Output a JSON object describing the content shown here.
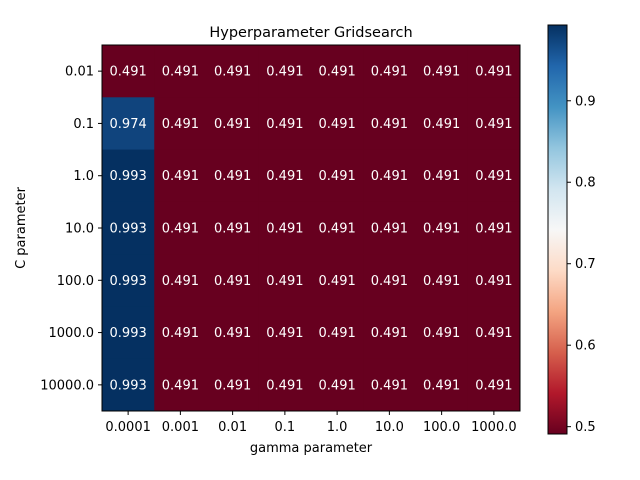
{
  "chart_data": {
    "type": "heatmap",
    "title": "Hyperparameter Gridsearch",
    "xlabel": "gamma parameter",
    "ylabel": "C parameter",
    "x_categories": [
      "0.0001",
      "0.001",
      "0.01",
      "0.1",
      "1.0",
      "10.0",
      "100.0",
      "1000.0"
    ],
    "y_categories": [
      "0.01",
      "0.1",
      "1.0",
      "10.0",
      "100.0",
      "1000.0",
      "10000.0"
    ],
    "values": [
      [
        0.491,
        0.491,
        0.491,
        0.491,
        0.491,
        0.491,
        0.491,
        0.491
      ],
      [
        0.974,
        0.491,
        0.491,
        0.491,
        0.491,
        0.491,
        0.491,
        0.491
      ],
      [
        0.993,
        0.491,
        0.491,
        0.491,
        0.491,
        0.491,
        0.491,
        0.491
      ],
      [
        0.993,
        0.491,
        0.491,
        0.491,
        0.491,
        0.491,
        0.491,
        0.491
      ],
      [
        0.993,
        0.491,
        0.491,
        0.491,
        0.491,
        0.491,
        0.491,
        0.491
      ],
      [
        0.993,
        0.491,
        0.491,
        0.491,
        0.491,
        0.491,
        0.491,
        0.491
      ],
      [
        0.993,
        0.491,
        0.491,
        0.491,
        0.491,
        0.491,
        0.491,
        0.491
      ]
    ],
    "colormap": "RdBu",
    "colorbar": {
      "range": [
        0.491,
        0.993
      ],
      "ticks": [
        0.5,
        0.6,
        0.7,
        0.8,
        0.9
      ],
      "tick_labels": [
        "0.5",
        "0.6",
        "0.7",
        "0.8",
        "0.9"
      ]
    },
    "colors": {
      "low": "#67001f",
      "high": "#053061"
    }
  }
}
